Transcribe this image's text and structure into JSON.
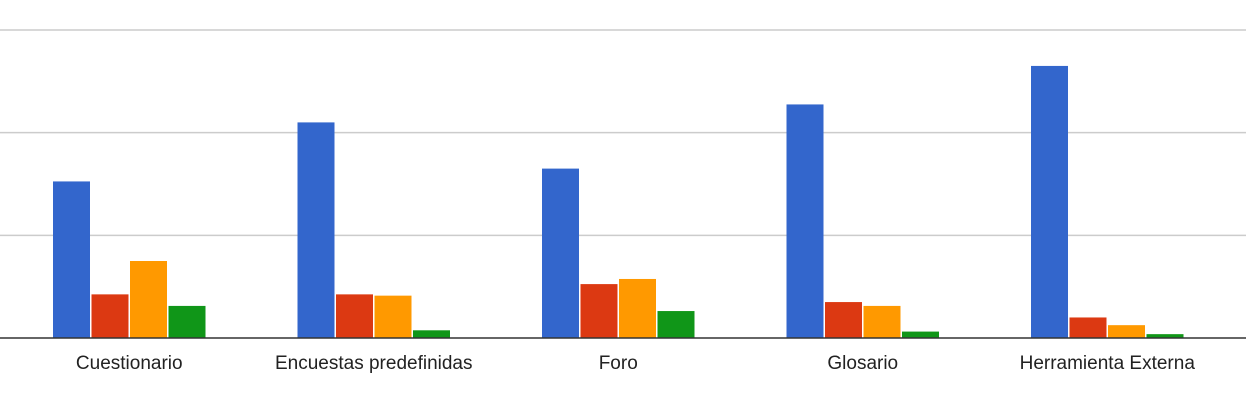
{
  "chart_data": {
    "type": "bar",
    "categories": [
      "Cuestionario",
      "Encuestas predefinidas",
      "Foro",
      "Glosario",
      "Herramienta Externa"
    ],
    "series": [
      {
        "color": "#3366cc",
        "values": [
          61,
          84,
          66,
          91,
          106
        ]
      },
      {
        "color": "#dc3912",
        "values": [
          17,
          17,
          21,
          14,
          8
        ]
      },
      {
        "color": "#ff9900",
        "values": [
          30,
          16.5,
          23,
          12.5,
          5
        ]
      },
      {
        "color": "#109618",
        "values": [
          12.5,
          3,
          10.5,
          2.5,
          1.5
        ]
      }
    ],
    "ylim": [
      0,
      120
    ],
    "gridlines": [
      40,
      80,
      120
    ],
    "grid": true,
    "legend": "none",
    "gridline_color": "#cccccc",
    "baseline_color": "#333333"
  }
}
